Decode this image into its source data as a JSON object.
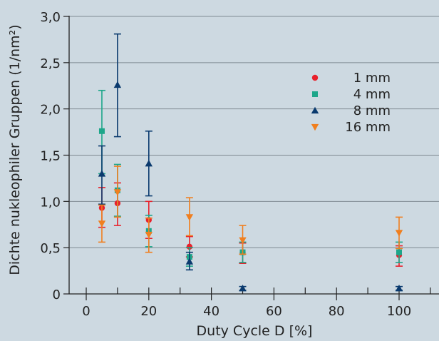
{
  "chart_data": {
    "type": "scatter",
    "xlabel": "Duty Cycle D [%]",
    "ylabel": "Dichte nukleophiler Gruppen (1/nm²)",
    "xlim": [
      -5,
      110
    ],
    "ylim": [
      0,
      3.0
    ],
    "x_ticks": [
      0,
      20,
      40,
      60,
      80,
      100
    ],
    "x_tick_labels": [
      "0",
      "20",
      "40",
      "60",
      "80",
      "100"
    ],
    "y_ticks": [
      0,
      0.5,
      1.0,
      1.5,
      2.0,
      2.5,
      3.0
    ],
    "y_tick_labels": [
      "0",
      "0,5",
      "1,0",
      "1,5",
      "2,0",
      "2,5",
      "3,0"
    ],
    "grid": "horizontal",
    "legend_position": "top-right",
    "series": [
      {
        "name": "1 mm",
        "color": "#e8212b",
        "marker": "circle",
        "points": [
          {
            "x": 5,
            "y": 0.93,
            "lo": 0.72,
            "hi": 1.15
          },
          {
            "x": 10,
            "y": 0.98,
            "lo": 0.74,
            "hi": 1.2
          },
          {
            "x": 20,
            "y": 0.8,
            "lo": 0.6,
            "hi": 1.0
          },
          {
            "x": 33,
            "y": 0.51,
            "lo": 0.4,
            "hi": 0.62
          },
          {
            "x": 50,
            "y": 0.45,
            "lo": 0.33,
            "hi": 0.55
          },
          {
            "x": 100,
            "y": 0.42,
            "lo": 0.3,
            "hi": 0.52
          }
        ]
      },
      {
        "name": "4 mm",
        "color": "#1da68a",
        "marker": "square",
        "points": [
          {
            "x": 5,
            "y": 1.76,
            "lo": 1.3,
            "hi": 2.2
          },
          {
            "x": 10,
            "y": 1.12,
            "lo": 0.84,
            "hi": 1.4
          },
          {
            "x": 20,
            "y": 0.68,
            "lo": 0.51,
            "hi": 0.85
          },
          {
            "x": 33,
            "y": 0.4,
            "lo": 0.3,
            "hi": 0.5
          },
          {
            "x": 50,
            "y": 0.45,
            "lo": 0.34,
            "hi": 0.56
          },
          {
            "x": 100,
            "y": 0.45,
            "lo": 0.34,
            "hi": 0.56
          }
        ]
      },
      {
        "name": "8 mm",
        "color": "#0a3a6e",
        "marker": "triangle-up",
        "points": [
          {
            "x": 5,
            "y": 1.3,
            "lo": 0.97,
            "hi": 1.6
          },
          {
            "x": 10,
            "y": 2.26,
            "lo": 1.7,
            "hi": 2.81
          },
          {
            "x": 20,
            "y": 1.41,
            "lo": 1.06,
            "hi": 1.76
          },
          {
            "x": 33,
            "y": 0.35,
            "lo": 0.26,
            "hi": 0.45
          },
          {
            "x": 50,
            "y": 0.06,
            "lo": 0.04,
            "hi": 0.08
          },
          {
            "x": 100,
            "y": 0.06,
            "lo": 0.04,
            "hi": 0.08
          }
        ]
      },
      {
        "name": "16 mm",
        "color": "#f07f1f",
        "marker": "triangle-down",
        "points": [
          {
            "x": 5,
            "y": 0.76,
            "lo": 0.56,
            "hi": 0.96
          },
          {
            "x": 10,
            "y": 1.1,
            "lo": 0.83,
            "hi": 1.38
          },
          {
            "x": 20,
            "y": 0.64,
            "lo": 0.45,
            "hi": 0.82
          },
          {
            "x": 33,
            "y": 0.83,
            "lo": 0.63,
            "hi": 1.04
          },
          {
            "x": 50,
            "y": 0.58,
            "lo": 0.43,
            "hi": 0.74
          },
          {
            "x": 100,
            "y": 0.66,
            "lo": 0.49,
            "hi": 0.83
          }
        ]
      }
    ]
  }
}
